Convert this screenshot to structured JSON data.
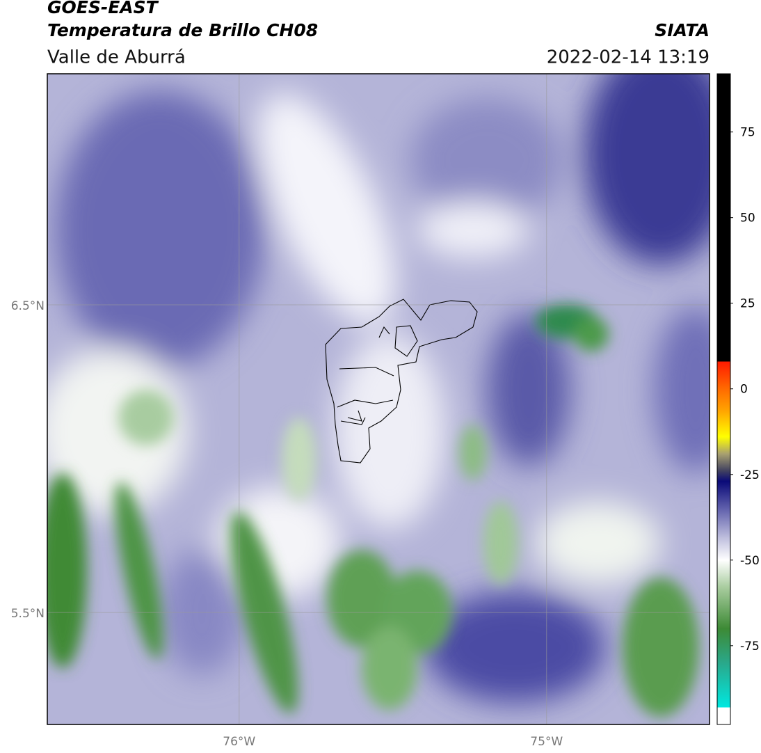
{
  "chart_data": {
    "type": "map",
    "title": "GOES-EAST",
    "subtitle": "Temperatura de Brillo CH08",
    "region": "Valle de Aburrá",
    "source": "SIATA",
    "datetime": "2022-02-14 13:19",
    "xlim": [
      -76.624,
      -74.47
    ],
    "ylim": [
      5.136,
      7.251
    ],
    "xticks": [
      {
        "value": -76,
        "label": "76°W"
      },
      {
        "value": -75,
        "label": "75°W"
      }
    ],
    "yticks": [
      {
        "value": 6.5,
        "label": "6.5°N"
      },
      {
        "value": 5.5,
        "label": "5.5°N"
      }
    ],
    "grid": true,
    "colorbar": {
      "lim": [
        -98,
        92
      ],
      "ticks": [
        75,
        50,
        25,
        0,
        -25,
        -50,
        -75
      ],
      "colormap": [
        {
          "value": -98,
          "color": "#ffffff"
        },
        {
          "value": -93,
          "color": "#ffffff"
        },
        {
          "value": -93,
          "color": "#00e8e0"
        },
        {
          "value": -80,
          "color": "#2aa88a"
        },
        {
          "value": -70,
          "color": "#3d8a35"
        },
        {
          "value": -58,
          "color": "#a8cc9e"
        },
        {
          "value": -50,
          "color": "#ffffff"
        },
        {
          "value": -44,
          "color": "#c4c4e0"
        },
        {
          "value": -35,
          "color": "#6060ac"
        },
        {
          "value": -27,
          "color": "#0a0a78"
        },
        {
          "value": -24,
          "color": "#404060"
        },
        {
          "value": -19,
          "color": "#a8a070"
        },
        {
          "value": -14,
          "color": "#ffff00"
        },
        {
          "value": -6,
          "color": "#ffa000"
        },
        {
          "value": 0,
          "color": "#ff6a00"
        },
        {
          "value": 8,
          "color": "#ff1a00"
        },
        {
          "value": 8,
          "color": "#000000"
        },
        {
          "value": 92,
          "color": "#000000"
        }
      ]
    }
  }
}
